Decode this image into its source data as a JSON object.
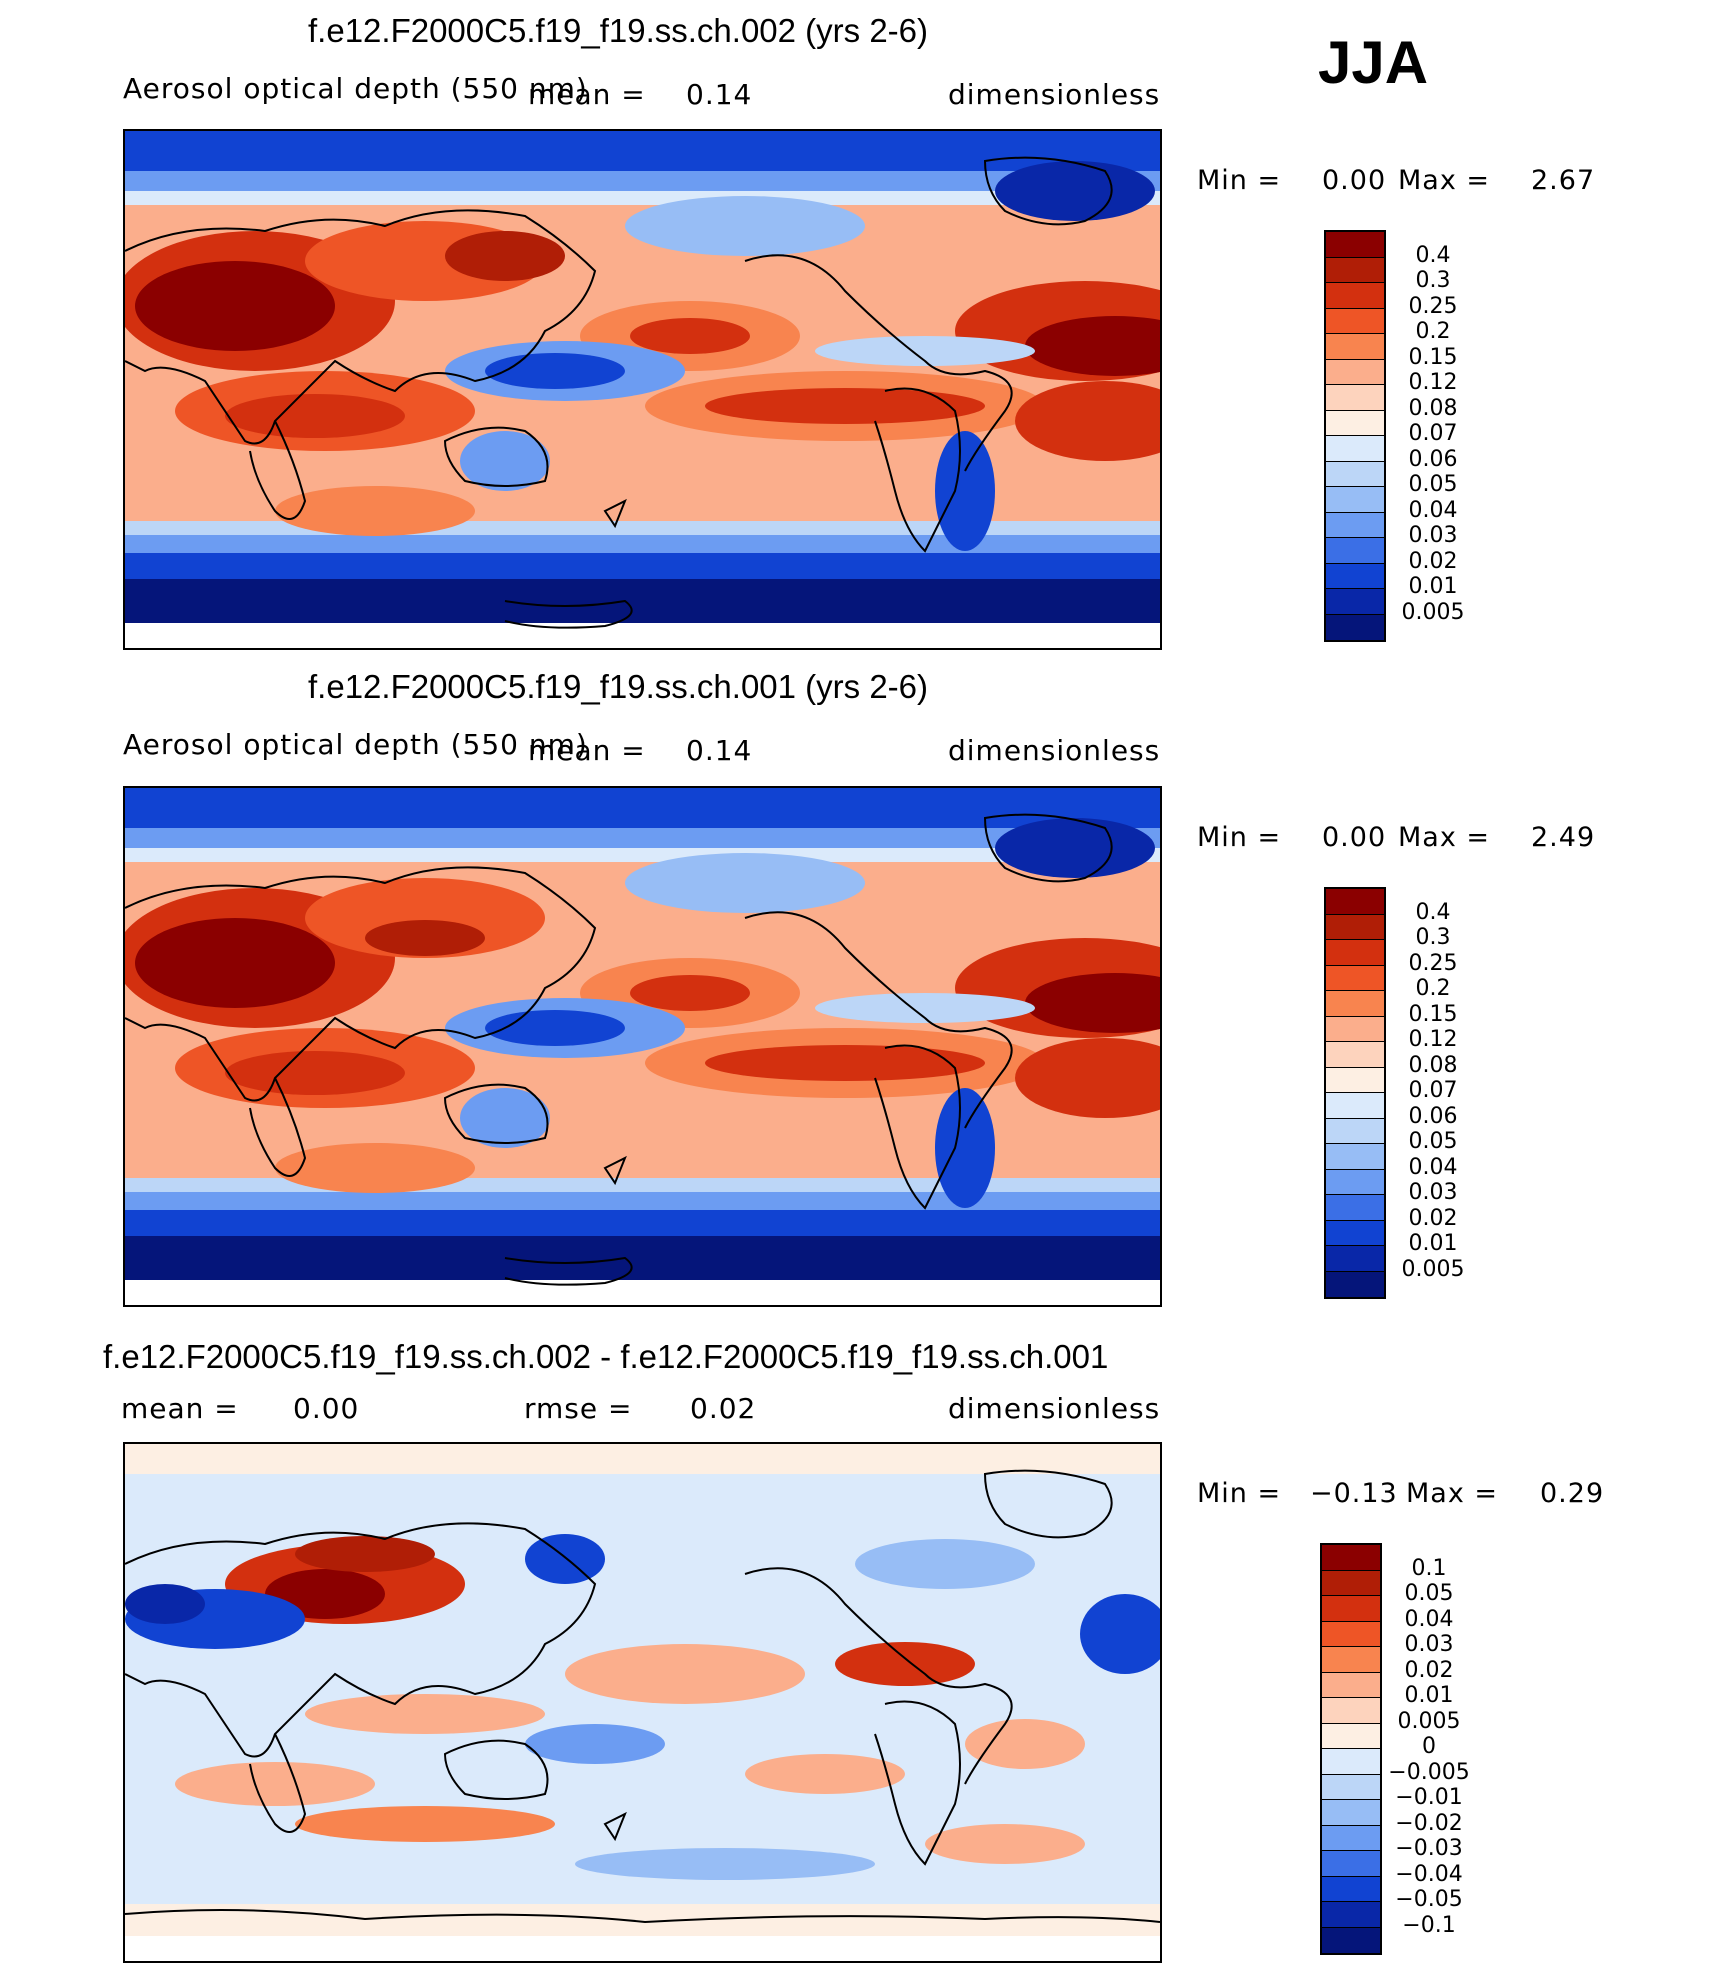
{
  "season": "JJA",
  "panels": [
    {
      "title": "f.e12.F2000C5.f19_f19.ss.ch.002 (yrs 2-6)",
      "variable": "Aerosol optical depth (550 nm)",
      "stat1_label": "mean =",
      "stat1_value": "0.14",
      "stat2_label": "",
      "stat2_value": "",
      "units": "dimensionless",
      "min_label": "Min =",
      "min_value": "0.00",
      "max_label": "Max =",
      "max_value": "2.67"
    },
    {
      "title": "f.e12.F2000C5.f19_f19.ss.ch.001 (yrs 2-6)",
      "variable": "Aerosol optical depth (550 nm)",
      "stat1_label": "mean =",
      "stat1_value": "0.14",
      "stat2_label": "",
      "stat2_value": "",
      "units": "dimensionless",
      "min_label": "Min =",
      "min_value": "0.00",
      "max_label": "Max =",
      "max_value": "2.49"
    },
    {
      "title": "f.e12.F2000C5.f19_f19.ss.ch.002 - f.e12.F2000C5.f19_f19.ss.ch.001",
      "variable": "",
      "stat1_label": "mean =",
      "stat1_value": "0.00",
      "stat2_label": "rmse =",
      "stat2_value": "0.02",
      "units": "dimensionless",
      "min_label": "Min =",
      "min_value": "−0.13",
      "max_label": "Max =",
      "max_value": "0.29"
    }
  ],
  "chart_data": [
    {
      "type": "heatmap",
      "title": "f.e12.F2000C5.f19_f19.ss.ch.002 (yrs 2-6)",
      "variable": "Aerosol optical depth (550 nm)",
      "units": "dimensionless",
      "mean": 0.14,
      "min": 0.0,
      "max": 2.67,
      "colorbar_levels": [
        "0.4",
        "0.3",
        "0.25",
        "0.2",
        "0.15",
        "0.12",
        "0.08",
        "0.07",
        "0.06",
        "0.05",
        "0.04",
        "0.03",
        "0.02",
        "0.01",
        "0.005"
      ],
      "colors": [
        "#8b0000",
        "#b01e06",
        "#d3300f",
        "#ee5526",
        "#f8844f",
        "#fbae8c",
        "#fdd3bd",
        "#fdefe3",
        "#dbeafb",
        "#bcd6f7",
        "#97bdf5",
        "#6c9cf2",
        "#3b6fe6",
        "#1143d2",
        "#0927a8",
        "#05157a"
      ]
    },
    {
      "type": "heatmap",
      "title": "f.e12.F2000C5.f19_f19.ss.ch.001 (yrs 2-6)",
      "variable": "Aerosol optical depth (550 nm)",
      "units": "dimensionless",
      "mean": 0.14,
      "min": 0.0,
      "max": 2.49,
      "colorbar_levels": [
        "0.4",
        "0.3",
        "0.25",
        "0.2",
        "0.15",
        "0.12",
        "0.08",
        "0.07",
        "0.06",
        "0.05",
        "0.04",
        "0.03",
        "0.02",
        "0.01",
        "0.005"
      ],
      "colors": [
        "#8b0000",
        "#b01e06",
        "#d3300f",
        "#ee5526",
        "#f8844f",
        "#fbae8c",
        "#fdd3bd",
        "#fdefe3",
        "#dbeafb",
        "#bcd6f7",
        "#97bdf5",
        "#6c9cf2",
        "#3b6fe6",
        "#1143d2",
        "#0927a8",
        "#05157a"
      ]
    },
    {
      "type": "heatmap",
      "title": "f.e12.F2000C5.f19_f19.ss.ch.002 - f.e12.F2000C5.f19_f19.ss.ch.001",
      "units": "dimensionless",
      "mean": 0.0,
      "rmse": 0.02,
      "min": -0.13,
      "max": 0.29,
      "colorbar_levels": [
        "0.1",
        "0.05",
        "0.04",
        "0.03",
        "0.02",
        "0.01",
        "0.005",
        "0",
        "−0.005",
        "−0.01",
        "−0.02",
        "−0.03",
        "−0.04",
        "−0.05",
        "−0.1"
      ],
      "colors": [
        "#8b0000",
        "#b01e06",
        "#d3300f",
        "#ee5526",
        "#f8844f",
        "#fbae8c",
        "#fdd3bd",
        "#fdefe3",
        "#dbeafb",
        "#bcd6f7",
        "#97bdf5",
        "#6c9cf2",
        "#3b6fe6",
        "#1143d2",
        "#0927a8",
        "#05157a"
      ]
    }
  ]
}
